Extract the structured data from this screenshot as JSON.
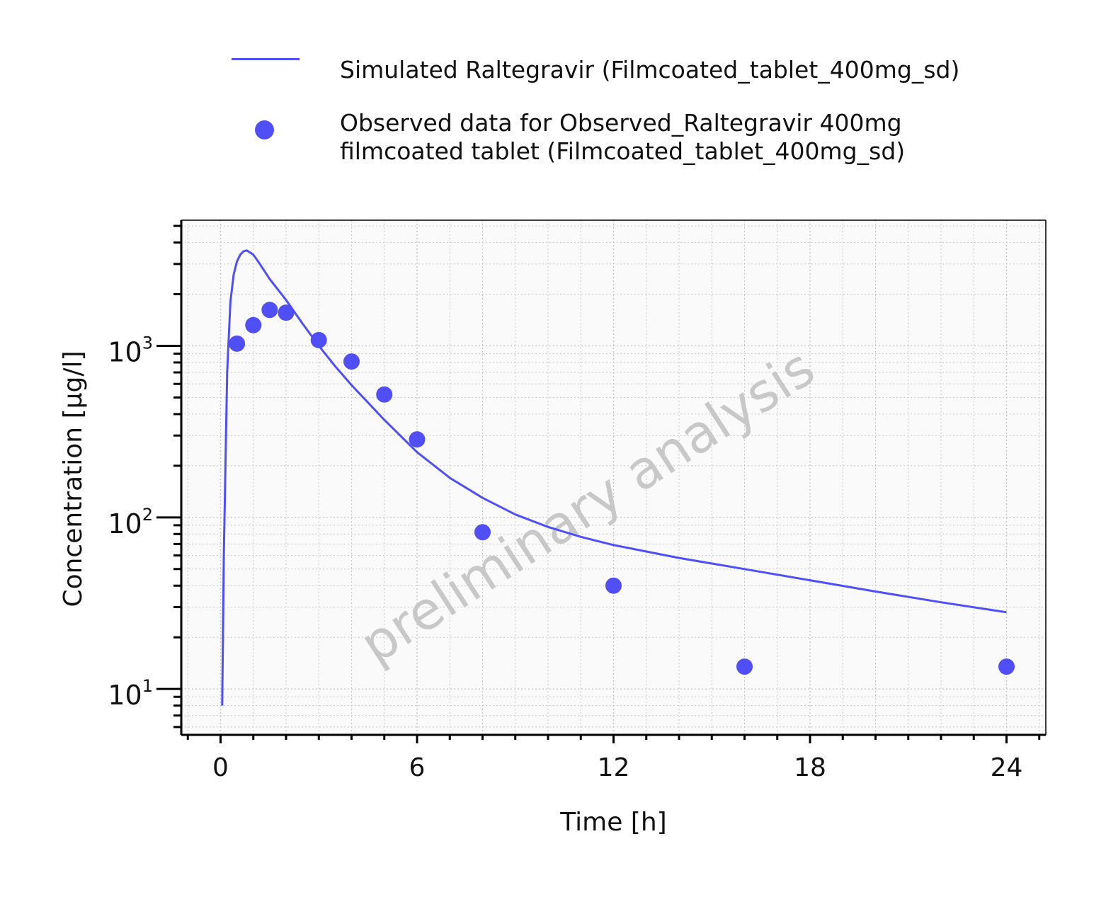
{
  "colors": {
    "series": "#4f4ff5",
    "axis": "#000000",
    "grid": "#c8c8c8",
    "plot_bg": "#fafafa",
    "watermark": "#c8c8c8"
  },
  "watermark": "preliminary analysis",
  "chart_data": {
    "type": "line",
    "xlabel": "Time [h]",
    "ylabel": "Concentration [µg/l]",
    "xlim": [
      -1.2,
      25.2
    ],
    "ylim": [
      5.4,
      5400
    ],
    "y_scale": "log",
    "x_ticks": [
      0,
      6,
      12,
      18,
      24
    ],
    "x_tick_labels": [
      "0",
      "6",
      "12",
      "18",
      "24"
    ],
    "y_ticks": [
      10,
      100,
      1000
    ],
    "y_tick_labels": [
      {
        "base": "10",
        "exp": "1"
      },
      {
        "base": "10",
        "exp": "2"
      },
      {
        "base": "10",
        "exp": "3"
      }
    ],
    "grid": true,
    "legend_position": "top",
    "series": [
      {
        "name": "Simulated Raltegravir (Filmcoated_tablet_400mg_sd)",
        "kind": "line",
        "x": [
          0.05,
          0.1,
          0.2,
          0.3,
          0.4,
          0.5,
          0.6,
          0.7,
          0.8,
          1.0,
          1.2,
          1.5,
          2.0,
          2.5,
          3.0,
          3.5,
          4.0,
          5.0,
          6.0,
          7.0,
          8.0,
          9.0,
          10.0,
          11.0,
          12.0,
          14.0,
          16.0,
          18.0,
          20.0,
          22.0,
          24.0
        ],
        "y": [
          8,
          60,
          700,
          1800,
          2600,
          3100,
          3400,
          3550,
          3600,
          3400,
          3000,
          2450,
          1850,
          1350,
          1000,
          760,
          590,
          370,
          240,
          170,
          130,
          104,
          88,
          77,
          69,
          58,
          50,
          43,
          37,
          32,
          28
        ]
      },
      {
        "name": "Observed data for Observed_Raltegravir 400mg filmcoated tablet (Filmcoated_tablet_400mg_sd)",
        "name_lines": [
          "Observed data for Observed_Raltegravir 400mg",
          "filmcoated tablet (Filmcoated_tablet_400mg_sd)"
        ],
        "kind": "scatter",
        "x": [
          0.5,
          1.0,
          1.5,
          2.0,
          3.0,
          4.0,
          5.0,
          6.0,
          8.0,
          12.0,
          16.0,
          24.0
        ],
        "y": [
          1030,
          1320,
          1620,
          1560,
          1080,
          810,
          520,
          285,
          82,
          40,
          13.5,
          13.5
        ]
      }
    ]
  }
}
